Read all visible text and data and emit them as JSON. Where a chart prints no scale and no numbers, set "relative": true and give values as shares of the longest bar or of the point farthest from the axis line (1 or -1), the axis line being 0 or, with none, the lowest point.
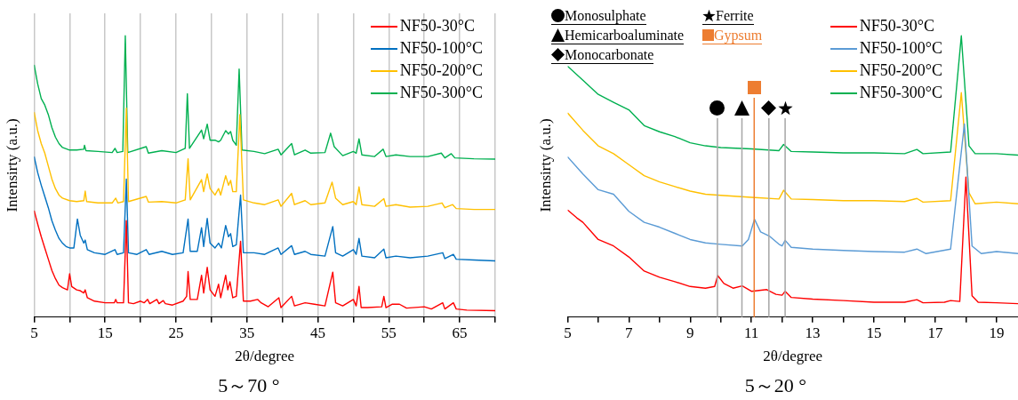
{
  "chart_data": [
    {
      "type": "line",
      "title": "5～70 °",
      "xlabel": "2θ/degree",
      "ylabel": "Intensirty (a.u.)",
      "relative": true,
      "grid": "x",
      "legend": "top right",
      "xlim": [
        5,
        70
      ],
      "xticks": [
        5,
        {
          "value": 10,
          "label": null
        },
        15,
        {
          "value": 20,
          "label": null
        },
        25,
        {
          "value": 30,
          "label": null
        },
        35,
        {
          "value": 40,
          "label": null
        },
        45,
        {
          "value": 50,
          "label": null
        },
        55,
        {
          "value": 60,
          "label": null
        },
        65,
        {
          "value": 70,
          "label": null
        }
      ],
      "series": [
        {
          "name": "NF50-30°C",
          "color": "#ff0000",
          "x": [
            5,
            5.5,
            6,
            6.5,
            7,
            7.5,
            8,
            8.5,
            9,
            9.7,
            10,
            10.3,
            11,
            11.5,
            12,
            12.2,
            12.5,
            13.5,
            15,
            16.3,
            16.5,
            16.7,
            17.6,
            18,
            18.3,
            19,
            20,
            20.5,
            21,
            21.3,
            22.3,
            22.6,
            23.2,
            23.5,
            24.5,
            26,
            26.5,
            26.7,
            27,
            28,
            28.6,
            28.9,
            29.4,
            29.8,
            30.5,
            31,
            31.3,
            32,
            32.3,
            32.6,
            33,
            33.5,
            34.1,
            34.5,
            35.5,
            36.5,
            37,
            38,
            39.5,
            39.8,
            41.3,
            41.7,
            43.2,
            44.5,
            46,
            47.1,
            47.5,
            48.5,
            50,
            50.4,
            50.8,
            51.1,
            52,
            54,
            54.3,
            54.6,
            55.5,
            56.5,
            57.5,
            60,
            61,
            62.6,
            62.9,
            64.1,
            64.5,
            66,
            70
          ],
          "values": [
            0.379,
            0.331,
            0.286,
            0.246,
            0.206,
            0.166,
            0.137,
            0.114,
            0.105,
            0.097,
            0.154,
            0.109,
            0.097,
            0.094,
            0.086,
            0.097,
            0.069,
            0.057,
            0.051,
            0.051,
            0.063,
            0.051,
            0.051,
            0.343,
            0.051,
            0.048,
            0.057,
            0.051,
            0.063,
            0.048,
            0.063,
            0.048,
            0.059,
            0.048,
            0.043,
            0.057,
            0.074,
            0.162,
            0.063,
            0.063,
            0.149,
            0.086,
            0.177,
            0.097,
            0.074,
            0.117,
            0.069,
            0.149,
            0.097,
            0.126,
            0.069,
            0.074,
            0.27,
            0.057,
            0.057,
            0.063,
            0.051,
            0.037,
            0.069,
            0.034,
            0.074,
            0.04,
            0.051,
            0.046,
            0.04,
            0.16,
            0.051,
            0.04,
            0.063,
            0.04,
            0.109,
            0.034,
            0.034,
            0.037,
            0.074,
            0.034,
            0.046,
            0.046,
            0.032,
            0.037,
            0.029,
            0.051,
            0.029,
            0.051,
            0.029,
            0.025,
            0.023
          ]
        },
        {
          "name": "NF50-100°C",
          "color": "#0070c0",
          "x": [
            5,
            5.5,
            6,
            6.5,
            7,
            7.5,
            8,
            8.5,
            9,
            9.5,
            10,
            10.6,
            11.1,
            11.5,
            12,
            12.2,
            12.5,
            13.5,
            15,
            16.4,
            16.7,
            17.6,
            18,
            18.3,
            19.5,
            20.8,
            21.2,
            23,
            24.5,
            26,
            26.7,
            27,
            28,
            28.6,
            28.9,
            29.4,
            29.8,
            30.5,
            31,
            31.4,
            32,
            32.4,
            32.7,
            33,
            33.5,
            34.1,
            34.5,
            36,
            37.5,
            39.4,
            39.8,
            41.3,
            41.7,
            43.2,
            44,
            46,
            47.1,
            47.5,
            48.5,
            50,
            50.4,
            50.8,
            51.2,
            53,
            54.3,
            54.6,
            56,
            58,
            60.5,
            62.6,
            62.9,
            64.1,
            64.5,
            67,
            70
          ],
          "values": [
            0.571,
            0.514,
            0.469,
            0.429,
            0.389,
            0.343,
            0.309,
            0.28,
            0.263,
            0.251,
            0.246,
            0.246,
            0.349,
            0.291,
            0.263,
            0.274,
            0.24,
            0.229,
            0.223,
            0.24,
            0.223,
            0.229,
            0.491,
            0.229,
            0.223,
            0.24,
            0.223,
            0.234,
            0.223,
            0.229,
            0.349,
            0.234,
            0.234,
            0.318,
            0.251,
            0.351,
            0.263,
            0.246,
            0.263,
            0.246,
            0.326,
            0.286,
            0.297,
            0.251,
            0.257,
            0.434,
            0.229,
            0.229,
            0.223,
            0.246,
            0.223,
            0.254,
            0.223,
            0.234,
            0.223,
            0.217,
            0.322,
            0.229,
            0.217,
            0.24,
            0.223,
            0.28,
            0.217,
            0.211,
            0.242,
            0.211,
            0.217,
            0.211,
            0.217,
            0.229,
            0.208,
            0.223,
            0.206,
            0.203,
            0.2
          ]
        },
        {
          "name": "NF50-200°C",
          "color": "#ffc000",
          "x": [
            5,
            5.5,
            6,
            6.5,
            7,
            7.5,
            8,
            8.5,
            9,
            10,
            11,
            12,
            12.2,
            12.4,
            14,
            16,
            16.5,
            16.8,
            17.6,
            18,
            18.3,
            20.8,
            21.1,
            23,
            25,
            26.3,
            26.7,
            27,
            28.6,
            28.9,
            29.4,
            29.8,
            30.5,
            31,
            31.3,
            32,
            32.4,
            32.7,
            33,
            33.5,
            34,
            34.5,
            36,
            37.5,
            39.4,
            39.8,
            41.3,
            41.7,
            43.2,
            44,
            46,
            47,
            47.5,
            48.5,
            50,
            50.4,
            50.8,
            51.2,
            53,
            54.3,
            54.6,
            56,
            58,
            60.5,
            62.5,
            62.9,
            64,
            64.5,
            67,
            70
          ],
          "values": [
            0.729,
            0.663,
            0.617,
            0.583,
            0.537,
            0.491,
            0.457,
            0.434,
            0.423,
            0.414,
            0.411,
            0.414,
            0.448,
            0.411,
            0.406,
            0.406,
            0.423,
            0.406,
            0.411,
            0.743,
            0.411,
            0.429,
            0.409,
            0.411,
            0.406,
            0.417,
            0.563,
            0.417,
            0.489,
            0.446,
            0.509,
            0.457,
            0.434,
            0.457,
            0.434,
            0.503,
            0.469,
            0.486,
            0.446,
            0.446,
            0.72,
            0.417,
            0.406,
            0.4,
            0.417,
            0.394,
            0.44,
            0.4,
            0.414,
            0.4,
            0.406,
            0.48,
            0.423,
            0.4,
            0.411,
            0.4,
            0.463,
            0.4,
            0.394,
            0.421,
            0.394,
            0.4,
            0.391,
            0.394,
            0.406,
            0.389,
            0.4,
            0.386,
            0.383,
            0.383
          ]
        },
        {
          "name": "NF50-300°C",
          "color": "#00b050",
          "x": [
            5,
            5.5,
            6,
            6.5,
            7,
            7.5,
            8,
            8.5,
            9,
            10,
            11,
            12,
            12.1,
            12.3,
            14,
            16,
            16.4,
            16.7,
            17.5,
            17.85,
            18.2,
            20.8,
            21.1,
            23,
            25,
            26.3,
            26.6,
            26.9,
            28.6,
            28.9,
            29.4,
            29.8,
            30.5,
            31,
            31.3,
            32,
            32.4,
            32.7,
            33,
            33.5,
            33.9,
            34.3,
            36,
            37.5,
            39.4,
            39.8,
            41.3,
            41.7,
            43.2,
            44,
            46,
            46.8,
            47.3,
            48.5,
            50,
            50.4,
            50.8,
            51.2,
            53,
            54.2,
            54.6,
            56,
            58,
            60.5,
            62.4,
            62.9,
            63.8,
            64.3,
            67,
            70
          ],
          "values": [
            0.897,
            0.829,
            0.777,
            0.754,
            0.72,
            0.674,
            0.64,
            0.617,
            0.603,
            0.594,
            0.594,
            0.597,
            0.611,
            0.592,
            0.589,
            0.585,
            0.6,
            0.585,
            0.589,
            1.0,
            0.585,
            0.606,
            0.583,
            0.592,
            0.585,
            0.6,
            0.794,
            0.6,
            0.665,
            0.634,
            0.686,
            0.629,
            0.629,
            0.623,
            0.629,
            0.663,
            0.651,
            0.66,
            0.629,
            0.611,
            0.882,
            0.594,
            0.589,
            0.581,
            0.597,
            0.577,
            0.617,
            0.577,
            0.594,
            0.583,
            0.585,
            0.654,
            0.606,
            0.574,
            0.589,
            0.583,
            0.634,
            0.577,
            0.571,
            0.597,
            0.571,
            0.577,
            0.571,
            0.571,
            0.583,
            0.566,
            0.581,
            0.566,
            0.563,
            0.562
          ]
        }
      ]
    },
    {
      "type": "line",
      "title": "5～20 °",
      "xlabel": "2θ/degree",
      "ylabel": "Intensirty (a.u.)",
      "relative": true,
      "legend": "top right",
      "xlim": [
        5,
        19.7
      ],
      "xticks": [
        5,
        {
          "value": 6,
          "label": null
        },
        7,
        {
          "value": 8,
          "label": null
        },
        9,
        {
          "value": 10,
          "label": null
        },
        11,
        {
          "value": 12,
          "label": null
        },
        13,
        {
          "value": 14,
          "label": null
        },
        15,
        {
          "value": 16,
          "label": null
        },
        17,
        {
          "value": 18,
          "label": null
        },
        19
      ],
      "annotations": [
        "Monosulphate",
        "Hemicarboaluminate",
        "Monocarbonate",
        "Ferrite",
        "Gypsum"
      ],
      "ref_lines": [
        {
          "axis": "x",
          "value": 9.89,
          "color": "#a6a6a6"
        },
        {
          "axis": "x",
          "value": 10.69,
          "color": "#a6a6a6"
        },
        {
          "axis": "x",
          "value": 11.09,
          "color": "#ed7d31"
        },
        {
          "axis": "x",
          "value": 11.57,
          "color": "#a6a6a6"
        },
        {
          "axis": "x",
          "value": 12.1,
          "color": "#a6a6a6"
        }
      ],
      "series": [
        {
          "name": "NF50-30°C",
          "color": "#ff0000",
          "x": [
            5,
            5.3,
            5.5,
            6,
            6.5,
            7,
            7.5,
            8,
            8.5,
            9,
            9.5,
            9.8,
            9.9,
            10.1,
            10.4,
            10.7,
            11,
            11.5,
            11.8,
            12,
            12.1,
            12.3,
            13,
            14,
            15,
            16,
            16.4,
            16.6,
            17.3,
            17.5,
            17.8,
            18,
            18.2,
            18.4,
            19,
            19.7
          ],
          "values": [
            0.381,
            0.353,
            0.337,
            0.276,
            0.253,
            0.214,
            0.164,
            0.142,
            0.126,
            0.109,
            0.103,
            0.109,
            0.148,
            0.12,
            0.103,
            0.111,
            0.092,
            0.098,
            0.081,
            0.078,
            0.092,
            0.07,
            0.064,
            0.059,
            0.053,
            0.053,
            0.062,
            0.051,
            0.053,
            0.059,
            0.056,
            0.498,
            0.076,
            0.053,
            0.051,
            0.048
          ]
        },
        {
          "name": "NF50-100°C",
          "color": "#5b9bd5",
          "x": [
            5,
            5.5,
            6,
            6.5,
            7,
            7.5,
            8,
            8.5,
            9,
            9.5,
            10,
            10.7,
            10.9,
            11.1,
            11.3,
            11.6,
            11.9,
            12,
            12.1,
            12.3,
            13,
            14,
            15,
            16,
            16.4,
            16.7,
            17.5,
            17.95,
            18.2,
            18.5,
            19,
            19.7
          ],
          "values": [
            0.57,
            0.509,
            0.453,
            0.437,
            0.376,
            0.337,
            0.32,
            0.298,
            0.276,
            0.264,
            0.259,
            0.253,
            0.276,
            0.348,
            0.303,
            0.287,
            0.259,
            0.253,
            0.273,
            0.248,
            0.242,
            0.237,
            0.233,
            0.231,
            0.242,
            0.226,
            0.242,
            0.687,
            0.253,
            0.226,
            0.233,
            0.226
          ]
        },
        {
          "name": "NF50-200°C",
          "color": "#ffc000",
          "x": [
            5,
            5.5,
            6,
            6.5,
            7,
            7.5,
            8,
            8.5,
            9,
            9.5,
            10,
            11,
            11.9,
            12.05,
            12.3,
            13,
            14,
            15,
            16,
            16.4,
            16.6,
            17.5,
            17.85,
            18.1,
            18.3,
            19,
            19.7
          ],
          "values": [
            0.726,
            0.664,
            0.609,
            0.581,
            0.542,
            0.503,
            0.481,
            0.464,
            0.448,
            0.437,
            0.433,
            0.426,
            0.42,
            0.451,
            0.42,
            0.418,
            0.414,
            0.414,
            0.411,
            0.422,
            0.409,
            0.414,
            0.798,
            0.442,
            0.403,
            0.409,
            0.403
          ]
        },
        {
          "name": "NF50-300°C",
          "color": "#00b050",
          "x": [
            5,
            5.5,
            6,
            6.5,
            7,
            7.5,
            8,
            8.5,
            9,
            9.5,
            10,
            11,
            11.9,
            12.05,
            12.3,
            13,
            14,
            15,
            16,
            16.4,
            16.6,
            17.5,
            17.85,
            18.1,
            18.3,
            19,
            19.7
          ],
          "values": [
            0.892,
            0.842,
            0.792,
            0.764,
            0.737,
            0.681,
            0.659,
            0.642,
            0.62,
            0.609,
            0.603,
            0.598,
            0.592,
            0.614,
            0.589,
            0.587,
            0.584,
            0.584,
            0.581,
            0.596,
            0.581,
            0.587,
            1.0,
            0.609,
            0.581,
            0.581,
            0.576
          ]
        }
      ]
    }
  ]
}
